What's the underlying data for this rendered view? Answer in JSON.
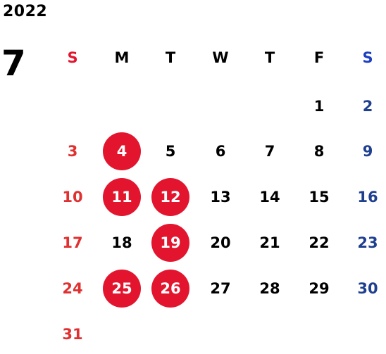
{
  "calendar": {
    "year": "2022",
    "month": "7",
    "weekdays": [
      "S",
      "M",
      "T",
      "W",
      "T",
      "F",
      "S"
    ],
    "weekday_colors": [
      "#e3152e",
      "#000000",
      "#000000",
      "#000000",
      "#000000",
      "#000000",
      "#1d3fbf"
    ],
    "day_colors": {
      "sunday": "#e03030",
      "weekday": "#000000",
      "saturday": "#1f3f8f",
      "highlight_bg": "#e3152e",
      "highlight_text": "#ffffff"
    },
    "weeks": [
      [
        null,
        null,
        null,
        null,
        null,
        "1",
        "2"
      ],
      [
        "3",
        "4",
        "5",
        "6",
        "7",
        "8",
        "9"
      ],
      [
        "10",
        "11",
        "12",
        "13",
        "14",
        "15",
        "16"
      ],
      [
        "17",
        "18",
        "19",
        "20",
        "21",
        "22",
        "23"
      ],
      [
        "24",
        "25",
        "26",
        "27",
        "28",
        "29",
        "30"
      ],
      [
        "31",
        null,
        null,
        null,
        null,
        null,
        null
      ]
    ],
    "highlighted_days": [
      "4",
      "11",
      "12",
      "19",
      "25",
      "26"
    ]
  }
}
